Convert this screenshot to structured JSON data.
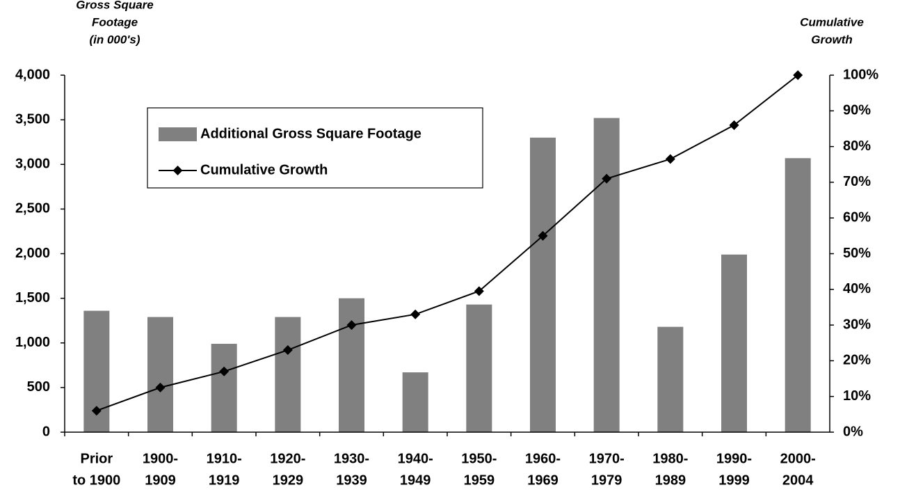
{
  "chart_data": {
    "type": "bar_line",
    "y_label": [
      "Gross Square",
      "Footage",
      "(in 000's)"
    ],
    "y2_label": [
      "Cumulative",
      "Growth"
    ],
    "categories": [
      [
        "Prior",
        "to 1900"
      ],
      [
        "1900-",
        "1909"
      ],
      [
        "1910-",
        "1919"
      ],
      [
        "1920-",
        "1929"
      ],
      [
        "1930-",
        "1939"
      ],
      [
        "1940-",
        "1949"
      ],
      [
        "1950-",
        "1959"
      ],
      [
        "1960-",
        "1969"
      ],
      [
        "1970-",
        "1979"
      ],
      [
        "1980-",
        "1989"
      ],
      [
        "1990-",
        "1999"
      ],
      [
        "2000-",
        "2004"
      ]
    ],
    "series": [
      {
        "name": "Additional Gross Square Footage",
        "type": "bar",
        "color": "#808080",
        "axis": "y",
        "values": [
          1360,
          1290,
          990,
          1290,
          1500,
          670,
          1430,
          3300,
          3520,
          1180,
          1990,
          3070
        ]
      },
      {
        "name": "Cumulative Growth",
        "type": "line",
        "color": "#000000",
        "axis": "y2",
        "values": [
          6,
          12.5,
          17,
          23,
          30,
          33,
          39.5,
          55,
          71,
          76.5,
          86,
          100
        ]
      }
    ],
    "ylim": [
      0,
      4000
    ],
    "yticks": [
      0,
      500,
      {
        "value": 1000,
        "label": "1,000"
      },
      {
        "value": 1500,
        "label": "1,500"
      },
      {
        "value": 2000,
        "label": "2,000"
      },
      {
        "value": 2500,
        "label": "2,500"
      },
      {
        "value": 3000,
        "label": "3,000"
      },
      {
        "value": 3500,
        "label": "3,500"
      },
      {
        "value": 4000,
        "label": "4,000"
      }
    ],
    "y2lim": [
      0,
      100
    ],
    "y2ticks": [
      {
        "value": 0,
        "label": "0%"
      },
      {
        "value": 10,
        "label": "10%"
      },
      {
        "value": 20,
        "label": "20%"
      },
      {
        "value": 30,
        "label": "30%"
      },
      {
        "value": 40,
        "label": "40%"
      },
      {
        "value": 50,
        "label": "50%"
      },
      {
        "value": 60,
        "label": "60%"
      },
      {
        "value": 70,
        "label": "70%"
      },
      {
        "value": 80,
        "label": "80%"
      },
      {
        "value": 90,
        "label": "90%"
      },
      {
        "value": 100,
        "label": "100%"
      }
    ],
    "grid": false,
    "legend": "upper left"
  }
}
